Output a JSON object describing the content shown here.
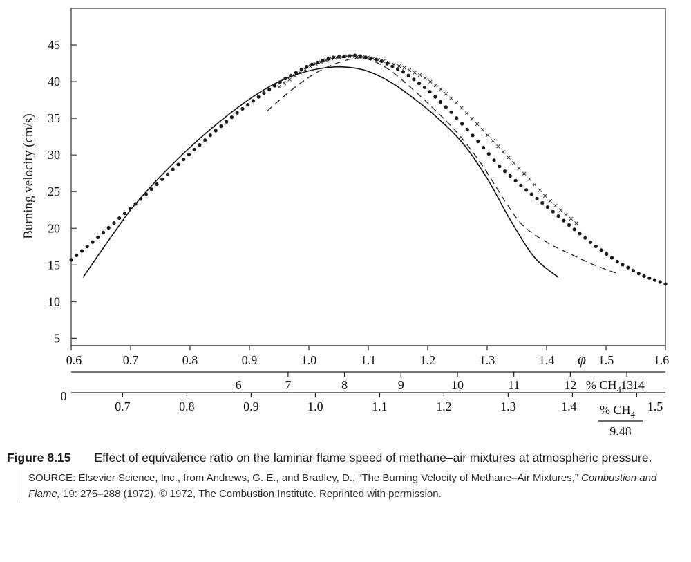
{
  "chart_data": {
    "type": "line",
    "ylabel": "Burning velocity (cm/s)",
    "xlim": [
      0.6,
      1.6
    ],
    "ylim": [
      4,
      50
    ],
    "yticks": [
      5,
      10,
      15,
      20,
      25,
      30,
      35,
      40,
      45
    ],
    "x_axis_phi": {
      "ticks": [
        0.6,
        0.7,
        0.8,
        0.9,
        1.0,
        1.1,
        1.2,
        1.3,
        1.4,
        1.5,
        1.6
      ],
      "tick_labels": [
        "0.6",
        "0.7",
        "0.8",
        "0.9",
        "1.0",
        "1.1",
        "1.2",
        "1.3",
        "1.4",
        "1.5",
        "1.6"
      ],
      "symbol": "φ"
    },
    "x_axis_ch4": {
      "ticks": [
        6,
        7,
        8,
        9,
        10,
        11,
        12,
        13,
        14
      ],
      "tick_labels": [
        "6",
        "7",
        "8",
        "9",
        "10",
        "11",
        "12",
        "13",
        "14"
      ],
      "unit_label": "% CH",
      "unit_subscript": "4"
    },
    "x_axis_ratio": {
      "zero_label": "0",
      "ticks": [
        0.7,
        0.8,
        0.9,
        1.0,
        1.1,
        1.2,
        1.3,
        1.4,
        1.5
      ],
      "tick_labels": [
        "0.7",
        "0.8",
        "0.9",
        "1.0",
        "1.1",
        "1.2",
        "1.3",
        "1.4",
        "1.5"
      ],
      "numerator": "% CH",
      "numerator_subscript": "4",
      "denominator": "9.48"
    },
    "series": [
      {
        "style": "solid",
        "x": [
          0.62,
          0.66,
          0.7,
          0.74,
          0.78,
          0.82,
          0.86,
          0.9,
          0.94,
          0.98,
          1.02,
          1.06,
          1.1,
          1.14,
          1.18,
          1.22,
          1.26,
          1.3,
          1.34,
          1.38,
          1.42
        ],
        "y": [
          13.3,
          18.0,
          22.5,
          26.2,
          29.5,
          32.5,
          35.2,
          37.6,
          39.6,
          41.0,
          41.8,
          42.0,
          41.4,
          39.8,
          37.5,
          34.8,
          31.5,
          26.8,
          21.0,
          16.0,
          13.3
        ]
      },
      {
        "style": "dotted",
        "x": [
          0.6,
          0.64,
          0.68,
          0.72,
          0.76,
          0.8,
          0.84,
          0.88,
          0.92,
          0.96,
          1.0,
          1.04,
          1.08,
          1.12,
          1.16,
          1.2,
          1.24,
          1.28,
          1.32,
          1.36,
          1.4,
          1.44,
          1.48,
          1.52,
          1.56,
          1.6
        ],
        "y": [
          15.7,
          18.4,
          21.3,
          24.2,
          27.2,
          30.2,
          33.1,
          35.8,
          38.2,
          40.4,
          42.2,
          43.3,
          43.6,
          42.9,
          41.3,
          38.9,
          35.8,
          32.3,
          28.5,
          25.6,
          23.0,
          20.3,
          17.7,
          15.4,
          13.6,
          12.4
        ]
      },
      {
        "style": "dashed",
        "x": [
          0.93,
          0.97,
          1.01,
          1.05,
          1.09,
          1.13,
          1.17,
          1.21,
          1.25,
          1.29,
          1.33,
          1.36,
          1.4,
          1.44,
          1.48,
          1.52
        ],
        "y": [
          36.0,
          38.8,
          41.1,
          42.6,
          43.2,
          41.9,
          39.3,
          36.3,
          33.0,
          28.8,
          23.7,
          20.4,
          18.1,
          16.5,
          15.0,
          13.8
        ]
      },
      {
        "style": "cross",
        "x": [
          0.95,
          0.98,
          1.01,
          1.04,
          1.07,
          1.1,
          1.13,
          1.16,
          1.19,
          1.22,
          1.25,
          1.28,
          1.31,
          1.34,
          1.37,
          1.4,
          1.42,
          1.44,
          1.45
        ],
        "y": [
          39.3,
          41.0,
          42.4,
          43.2,
          43.5,
          43.3,
          42.7,
          41.9,
          40.8,
          39.1,
          37.0,
          34.5,
          31.9,
          29.3,
          26.8,
          24.2,
          22.7,
          21.4,
          20.7
        ]
      }
    ]
  },
  "caption": {
    "figure_number": "Figure 8.15",
    "text": "Effect of equivalence ratio on the laminar flame speed of methane–air mixtures at atmospheric pressure.",
    "source_prefix": "SOURCE: Elsevier Science, Inc., from Andrews, G. E., and Bradley, D., “The Burning Velocity of Methane–Air Mixtures,”",
    "source_journal": "Combustion and Flame,",
    "source_suffix": "19: 275–288 (1972), © 1972, The Combustion Institute. Reprinted with permission."
  }
}
